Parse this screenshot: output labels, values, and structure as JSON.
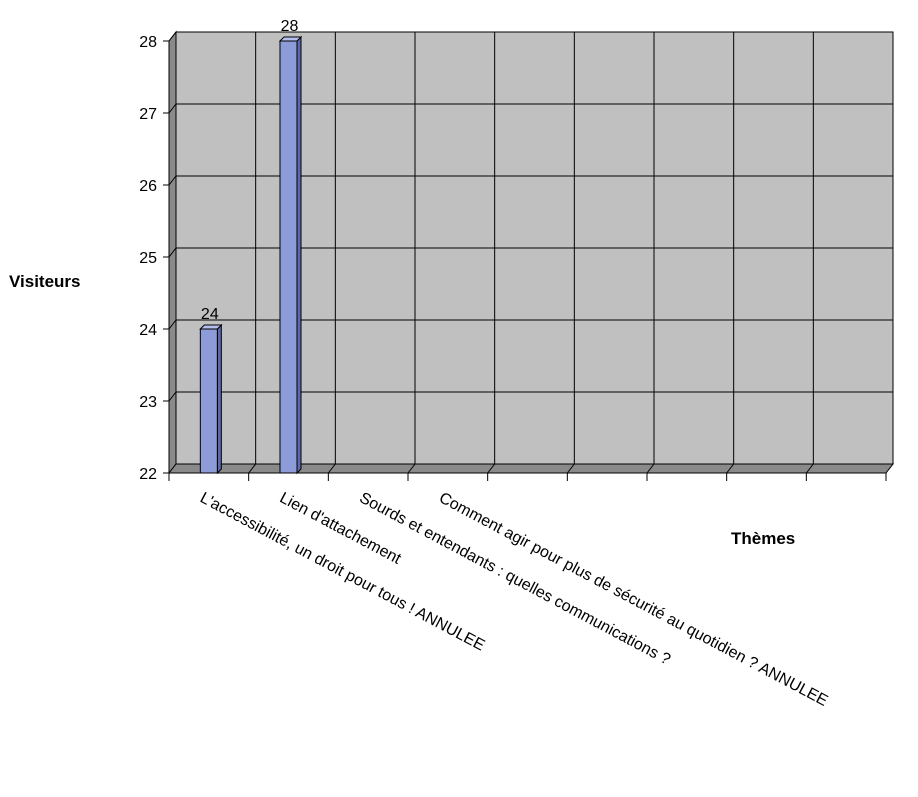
{
  "chart_data": {
    "type": "bar",
    "title": "",
    "xlabel": "Thèmes",
    "ylabel": "Visiteurs",
    "ylim": [
      22,
      28
    ],
    "yticks": [
      22,
      23,
      24,
      25,
      26,
      27,
      28
    ],
    "grid": true,
    "legend": "none",
    "categories": [
      "L'accessibilité, un droit pour tous ! ANNULEE",
      "Lien d'attachement",
      "Sourds et entendants : quelles communications ?",
      "Comment agir pour plus de sécurité au quotidien ? ANNULEE"
    ],
    "series": [
      {
        "values": [
          24,
          28,
          null,
          null
        ]
      }
    ],
    "colors": {
      "bar_front": "#8e9bd9",
      "bar_side": "#5a68b0",
      "bar_top": "#b4bfee",
      "plot_back": "#c0c0c0",
      "plot_wall": "#8a8a8a",
      "plot_floor": "#8a8a8a"
    }
  }
}
